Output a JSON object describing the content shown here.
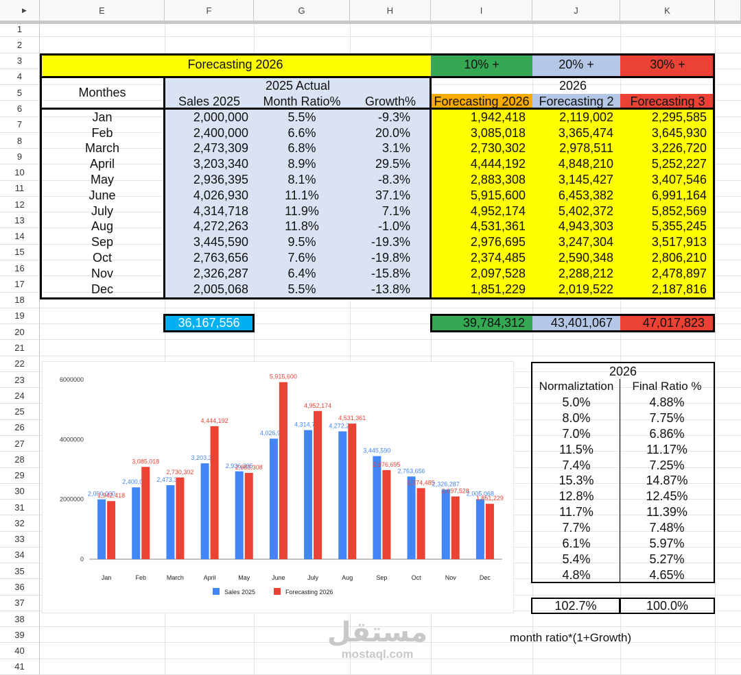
{
  "sheet": {
    "columns": [
      "E",
      "F",
      "G",
      "H",
      "I",
      "J",
      "K"
    ],
    "rows": [
      "1",
      "2",
      "3",
      "4",
      "5",
      "6",
      "7",
      "8",
      "9",
      "10",
      "11",
      "12",
      "13",
      "14",
      "15",
      "16",
      "17",
      "18",
      "19",
      "20",
      "21",
      "22",
      "23",
      "24",
      "25",
      "26",
      "27",
      "28",
      "29",
      "30",
      "31",
      "32",
      "33",
      "34",
      "35",
      "36",
      "37",
      "38",
      "39",
      "40",
      "41"
    ]
  },
  "table": {
    "title": "Forecasting 2026",
    "pct10": "10% +",
    "pct20": "20% +",
    "pct30": "30% +",
    "months_header": "Monthes",
    "sales_header": "Sales 2025",
    "actual_header": "2025 Actual",
    "ratio_header": "Month Ratio%",
    "growth_header": "Growth%",
    "year_header": "2026",
    "fc1_header": "Forecasting 2026",
    "fc2_header": "Forecasting 2",
    "fc3_header": "Forecasting 3",
    "rows": [
      {
        "month": "Jan",
        "sales": "2,000,000",
        "ratio": "5.5%",
        "growth": "-9.3%",
        "fc1": "1,942,418",
        "fc2": "2,119,002",
        "fc3": "2,295,585"
      },
      {
        "month": "Feb",
        "sales": "2,400,000",
        "ratio": "6.6%",
        "growth": "20.0%",
        "fc1": "3,085,018",
        "fc2": "3,365,474",
        "fc3": "3,645,930"
      },
      {
        "month": "March",
        "sales": "2,473,309",
        "ratio": "6.8%",
        "growth": "3.1%",
        "fc1": "2,730,302",
        "fc2": "2,978,511",
        "fc3": "3,226,720"
      },
      {
        "month": "April",
        "sales": "3,203,340",
        "ratio": "8.9%",
        "growth": "29.5%",
        "fc1": "4,444,192",
        "fc2": "4,848,210",
        "fc3": "5,252,227"
      },
      {
        "month": "May",
        "sales": "2,936,395",
        "ratio": "8.1%",
        "growth": "-8.3%",
        "fc1": "2,883,308",
        "fc2": "3,145,427",
        "fc3": "3,407,546"
      },
      {
        "month": "June",
        "sales": "4,026,930",
        "ratio": "11.1%",
        "growth": "37.1%",
        "fc1": "5,915,600",
        "fc2": "6,453,382",
        "fc3": "6,991,164"
      },
      {
        "month": "July",
        "sales": "4,314,718",
        "ratio": "11.9%",
        "growth": "7.1%",
        "fc1": "4,952,174",
        "fc2": "5,402,372",
        "fc3": "5,852,569"
      },
      {
        "month": "Aug",
        "sales": "4,272,263",
        "ratio": "11.8%",
        "growth": "-1.0%",
        "fc1": "4,531,361",
        "fc2": "4,943,303",
        "fc3": "5,355,245"
      },
      {
        "month": "Sep",
        "sales": "3,445,590",
        "ratio": "9.5%",
        "growth": "-19.3%",
        "fc1": "2,976,695",
        "fc2": "3,247,304",
        "fc3": "3,517,913"
      },
      {
        "month": "Oct",
        "sales": "2,763,656",
        "ratio": "7.6%",
        "growth": "-19.8%",
        "fc1": "2,374,485",
        "fc2": "2,590,348",
        "fc3": "2,806,210"
      },
      {
        "month": "Nov",
        "sales": "2,326,287",
        "ratio": "6.4%",
        "growth": "-15.8%",
        "fc1": "2,097,528",
        "fc2": "2,288,212",
        "fc3": "2,478,897"
      },
      {
        "month": "Dec",
        "sales": "2,005,068",
        "ratio": "5.5%",
        "growth": "-13.8%",
        "fc1": "1,851,229",
        "fc2": "2,019,522",
        "fc3": "2,187,816"
      }
    ],
    "total_sales": "36,167,556",
    "total_fc1": "39,784,312",
    "total_fc2": "43,401,067",
    "total_fc3": "47,017,823"
  },
  "ratio_table": {
    "year": "2026",
    "norm_header": "Normaliztation",
    "final_header": "Final Ratio %",
    "rows": [
      {
        "norm": "5.0%",
        "final": "4.88%"
      },
      {
        "norm": "8.0%",
        "final": "7.75%"
      },
      {
        "norm": "7.0%",
        "final": "6.86%"
      },
      {
        "norm": "11.5%",
        "final": "11.17%"
      },
      {
        "norm": "7.4%",
        "final": "7.25%"
      },
      {
        "norm": "15.3%",
        "final": "14.87%"
      },
      {
        "norm": "12.8%",
        "final": "12.45%"
      },
      {
        "norm": "11.7%",
        "final": "11.39%"
      },
      {
        "norm": "7.7%",
        "final": "7.48%"
      },
      {
        "norm": "6.1%",
        "final": "5.97%"
      },
      {
        "norm": "5.4%",
        "final": "5.27%"
      },
      {
        "norm": "4.8%",
        "final": "4.65%"
      }
    ],
    "total_norm": "102.7%",
    "total_final": "100.0%",
    "formula_note": "month ratio*(1+Growth)"
  },
  "watermark": {
    "arabic": "مستقل",
    "url": "mostaql.com"
  },
  "colors": {
    "yellow": "#ffff00",
    "green": "#34a853",
    "light_blue": "#b4c7e7",
    "red": "#ea4335",
    "orange": "#f9ab00",
    "sales_fill": "#dae3f3",
    "cyan": "#00b0f0",
    "series_blue": "#4285f4",
    "series_red": "#ea4335"
  },
  "chart_data": {
    "type": "bar",
    "categories": [
      "Jan",
      "Feb",
      "March",
      "April",
      "May",
      "June",
      "July",
      "Aug",
      "Sep",
      "Oct",
      "Nov",
      "Dec"
    ],
    "series": [
      {
        "name": "Sales 2025",
        "values": [
          2000000,
          2400000,
          2473309,
          3203340,
          2936395,
          4026930,
          4314718,
          4272263,
          3445590,
          2763656,
          2326287,
          2005068
        ],
        "labels": [
          "2,000,000",
          "2,400,000",
          "2,473,309",
          "3,203,340",
          "2,936,395",
          "4,026,930",
          "4,314,718",
          "4,272,263",
          "3,445,590",
          "2,763,656",
          "2,326,287",
          "2,005,068"
        ]
      },
      {
        "name": "Forecasting 2026",
        "values": [
          1942418,
          3085018,
          2730302,
          4444192,
          2883308,
          5915600,
          4952174,
          4531361,
          2976695,
          2374485,
          2097528,
          1851229
        ],
        "labels": [
          "1,942,418",
          "3,085,018",
          "2,730,302",
          "4,444,192",
          "2,883,308",
          "5,915,600",
          "4,952,174",
          "4,531,361",
          "2,976,695",
          "2,374,485",
          "2,097,528",
          "1,851,229"
        ]
      }
    ],
    "yticks": [
      "0",
      "2000000",
      "4000000",
      "6000000"
    ],
    "ylim": [
      0,
      6000000
    ],
    "legend": "bottom",
    "grid": false
  }
}
